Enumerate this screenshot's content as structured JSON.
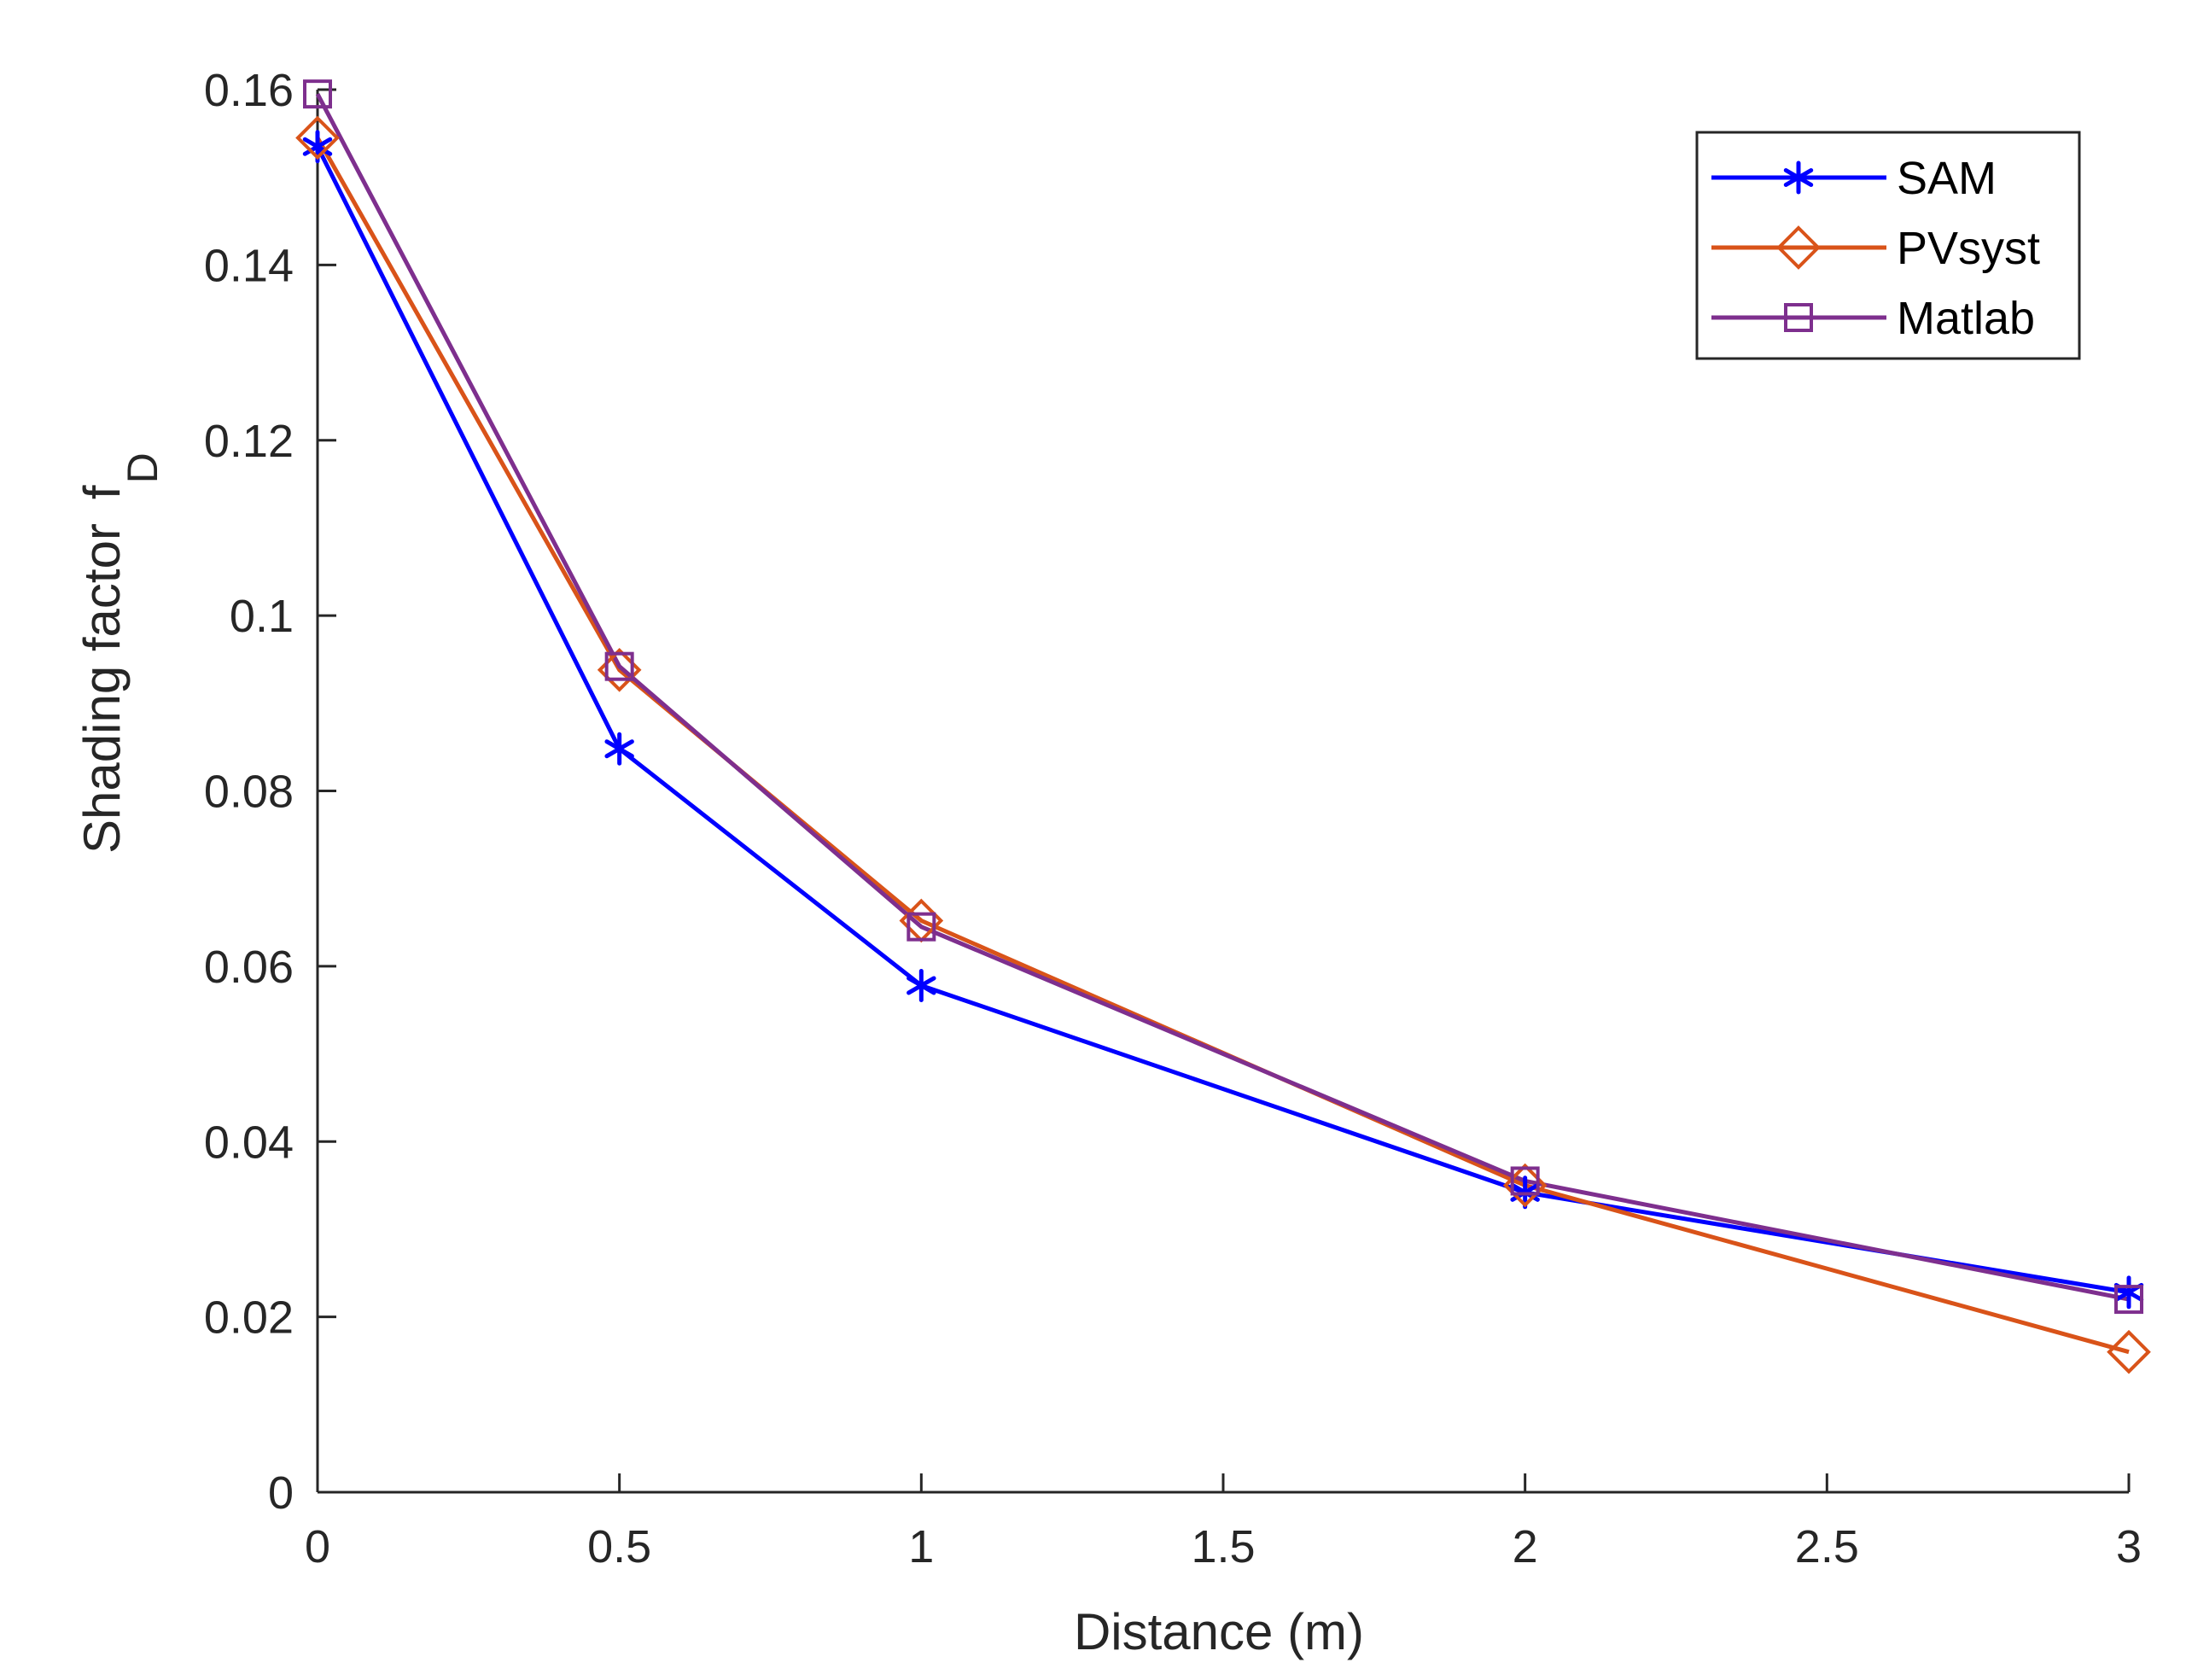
{
  "chart_data": {
    "type": "line",
    "title": "",
    "xlabel": "Distance (m)",
    "ylabel": "Shading factor",
    "ylabel_symbol": "f",
    "ylabel_subscript": "D",
    "xlim": [
      0,
      3
    ],
    "ylim": [
      0,
      0.16
    ],
    "xticks": [
      0,
      0.5,
      1,
      1.5,
      2,
      2.5,
      3
    ],
    "xtick_labels": [
      "0",
      "0.5",
      "1",
      "1.5",
      "2",
      "2.5",
      "3"
    ],
    "yticks": [
      0,
      0.02,
      0.04,
      0.06,
      0.08,
      0.1,
      0.12,
      0.14,
      0.16
    ],
    "ytick_labels": [
      "0",
      "0.02",
      "0.04",
      "0.06",
      "0.08",
      "0.1",
      "0.12",
      "0.14",
      "0.16"
    ],
    "grid": false,
    "legend_position": "top-right",
    "x": [
      0,
      0.5,
      1,
      2,
      3
    ],
    "series": [
      {
        "name": "SAM",
        "color": "#0000ff",
        "marker": "asterisk",
        "values": [
          0.1535,
          0.0848,
          0.0578,
          0.0342,
          0.0228
        ]
      },
      {
        "name": "PVsyst",
        "color": "#d95319",
        "marker": "diamond",
        "values": [
          0.1545,
          0.0938,
          0.0652,
          0.035,
          0.016
        ]
      },
      {
        "name": "Matlab",
        "color": "#7e2f8e",
        "marker": "square",
        "values": [
          0.1595,
          0.0942,
          0.0645,
          0.0355,
          0.022
        ]
      }
    ]
  }
}
